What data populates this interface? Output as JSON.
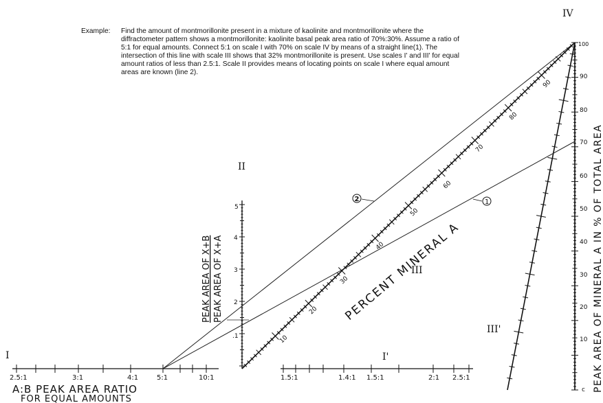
{
  "example": {
    "label": "Example:",
    "text": "Find the amount of montmorillonite present in a mixture of kaolinite and montmorillonite where the diffractometer pattern shows a montmorillonite: kaolinite basal peak area ratio of 70%:30%. Assume a ratio of 5:1 for equal amounts. Connect 5:1 on scale I with 70% on scale IV by means of a straight line(1). The intersection of this line with scale III shows that 32% montmorillonite is present. Use scales I' and III' for equal amount ratios of less than 2.5:1. Scale II provides means of locating points on scale I where equal amount areas are known (line 2)."
  },
  "scales": {
    "I": {
      "name": "I",
      "ticks": [
        "2.5:1",
        "3:1",
        "4:1",
        "5:1",
        "10:1"
      ]
    },
    "I_prime": {
      "name": "I'",
      "ticks": [
        "1.5:1",
        "1.4:1",
        "1.5:1",
        "2:1",
        "2.5:1"
      ]
    },
    "II": {
      "name": "II",
      "ticks": [
        "5",
        "4",
        "3",
        "2",
        ".1"
      ],
      "label_top": "PEAK AREA OF X+B",
      "label_bottom": "PEAK AREA OF X+A"
    },
    "III": {
      "name": "III",
      "ticks": [
        "10",
        "20",
        "30",
        "40",
        "50",
        "60",
        "70",
        "80",
        "90"
      ],
      "label": "PERCENT MINERAL A"
    },
    "III_prime": {
      "name": "III'"
    },
    "IV": {
      "name": "IV",
      "ticks": [
        "100",
        "90",
        "80",
        "70",
        "60",
        "50",
        "40",
        "30",
        "20",
        "10",
        "c"
      ],
      "label": "PEAK AREA OF MINERAL A IN % OF TOTAL AREA"
    }
  },
  "lines": {
    "line1": "1",
    "line2": "2"
  },
  "bottom_caption": {
    "line1": "A:B PEAK AREA RATIO",
    "line2": "FOR EQUAL AMOUNTS"
  }
}
